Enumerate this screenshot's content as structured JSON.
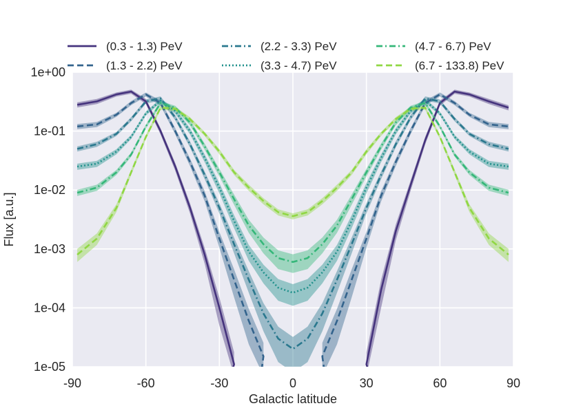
{
  "chart_data": {
    "type": "line",
    "title": "",
    "xlabel": "Galactic latitude",
    "ylabel": "Flux [a.u.]",
    "xlim": [
      -90,
      90
    ],
    "ylim": [
      1e-05,
      1
    ],
    "yscale": "log",
    "grid": true,
    "legend_position": "top",
    "x_ticks": [
      -90,
      -60,
      -30,
      0,
      30,
      60,
      90
    ],
    "x_tick_labels": [
      "-90",
      "-60",
      "-30",
      "0",
      "30",
      "60",
      "90"
    ],
    "y_ticks": [
      1e-05,
      0.0001,
      0.001,
      0.01,
      0.1,
      1
    ],
    "y_tick_labels": [
      "1e-05",
      "1e-04",
      "1e-03",
      "1e-02",
      "1e-01",
      "1e+00"
    ],
    "x": [
      -88,
      -80,
      -72,
      -66,
      -60,
      -54,
      -48,
      -42,
      -36,
      -30,
      -24,
      -18,
      -12,
      -6,
      0,
      6,
      12,
      18,
      24,
      30,
      36,
      42,
      48,
      54,
      60,
      66,
      72,
      80,
      88
    ],
    "series": [
      {
        "name": "(0.3 - 1.3) PeV",
        "color": "#45337d",
        "dash": "solid",
        "values": [
          0.28,
          0.32,
          0.42,
          0.47,
          0.32,
          0.1,
          0.025,
          0.005,
          0.0008,
          0.0001,
          1.1e-05,
          null,
          null,
          null,
          null,
          null,
          null,
          null,
          null,
          1.1e-05,
          0.0002,
          0.002,
          0.012,
          0.07,
          0.3,
          0.47,
          0.42,
          0.32,
          0.25
        ],
        "band": [
          0.1,
          0.1,
          0.08,
          0.08,
          0.1,
          0.12,
          0.15,
          0.2,
          0.3,
          0.5,
          0.6,
          null,
          null,
          null,
          null,
          null,
          null,
          null,
          null,
          0.6,
          0.5,
          0.3,
          0.2,
          0.15,
          0.1,
          0.08,
          0.08,
          0.1,
          0.1
        ]
      },
      {
        "name": "(1.3 - 2.2) PeV",
        "color": "#33638d",
        "dash": "dash",
        "values": [
          0.12,
          0.13,
          0.19,
          0.3,
          0.42,
          0.3,
          0.1,
          0.03,
          0.008,
          0.0015,
          0.0003,
          6e-05,
          1.5e-05,
          null,
          null,
          null,
          1.5e-05,
          6e-05,
          0.0003,
          0.0015,
          0.008,
          0.03,
          0.1,
          0.3,
          0.42,
          0.3,
          0.19,
          0.13,
          0.12
        ],
        "band": [
          0.1,
          0.1,
          0.08,
          0.08,
          0.08,
          0.1,
          0.12,
          0.15,
          0.2,
          0.3,
          0.5,
          0.6,
          0.7,
          null,
          null,
          null,
          0.7,
          0.6,
          0.5,
          0.3,
          0.2,
          0.15,
          0.12,
          0.1,
          0.08,
          0.08,
          0.08,
          0.1,
          0.1
        ]
      },
      {
        "name": "(2.2 - 3.3) PeV",
        "color": "#2a788e",
        "dash": "dashdot",
        "values": [
          0.05,
          0.06,
          0.09,
          0.16,
          0.32,
          0.36,
          0.17,
          0.06,
          0.018,
          0.005,
          0.0012,
          0.0003,
          8e-05,
          3e-05,
          2e-05,
          3e-05,
          8e-05,
          0.0003,
          0.0012,
          0.005,
          0.018,
          0.06,
          0.17,
          0.36,
          0.32,
          0.16,
          0.09,
          0.06,
          0.05
        ],
        "band": [
          0.1,
          0.1,
          0.08,
          0.08,
          0.08,
          0.08,
          0.1,
          0.12,
          0.15,
          0.2,
          0.3,
          0.4,
          0.5,
          0.6,
          0.6,
          0.6,
          0.5,
          0.4,
          0.3,
          0.2,
          0.15,
          0.12,
          0.1,
          0.08,
          0.08,
          0.08,
          0.08,
          0.1,
          0.1
        ]
      },
      {
        "name": "(3.3 - 4.7) PeV",
        "color": "#21918c",
        "dash": "dot",
        "values": [
          0.025,
          0.028,
          0.045,
          0.08,
          0.2,
          0.33,
          0.22,
          0.1,
          0.035,
          0.011,
          0.003,
          0.0009,
          0.0004,
          0.00022,
          0.00018,
          0.00022,
          0.0004,
          0.0009,
          0.003,
          0.011,
          0.035,
          0.1,
          0.22,
          0.33,
          0.2,
          0.08,
          0.045,
          0.028,
          0.025
        ],
        "band": [
          0.12,
          0.12,
          0.1,
          0.08,
          0.08,
          0.08,
          0.1,
          0.12,
          0.15,
          0.2,
          0.25,
          0.3,
          0.35,
          0.4,
          0.4,
          0.4,
          0.35,
          0.3,
          0.25,
          0.2,
          0.15,
          0.12,
          0.1,
          0.08,
          0.08,
          0.08,
          0.1,
          0.12,
          0.12
        ]
      },
      {
        "name": "(4.7 - 6.7) PeV",
        "color": "#35b779",
        "dash": "dashdot",
        "values": [
          0.009,
          0.011,
          0.02,
          0.04,
          0.12,
          0.3,
          0.25,
          0.14,
          0.055,
          0.02,
          0.007,
          0.0025,
          0.0012,
          0.0007,
          0.0006,
          0.0007,
          0.0012,
          0.0025,
          0.007,
          0.02,
          0.055,
          0.14,
          0.25,
          0.3,
          0.12,
          0.04,
          0.02,
          0.011,
          0.009
        ],
        "band": [
          0.12,
          0.12,
          0.1,
          0.08,
          0.08,
          0.08,
          0.08,
          0.1,
          0.12,
          0.15,
          0.2,
          0.25,
          0.3,
          0.35,
          0.35,
          0.35,
          0.3,
          0.25,
          0.2,
          0.15,
          0.12,
          0.1,
          0.08,
          0.08,
          0.08,
          0.08,
          0.1,
          0.12,
          0.12
        ]
      },
      {
        "name": "(6.7 - 133.8) PeV",
        "color": "#90d743",
        "dash": "dash",
        "values": [
          0.0008,
          0.0015,
          0.005,
          0.02,
          0.08,
          0.25,
          0.24,
          0.16,
          0.09,
          0.045,
          0.02,
          0.011,
          0.0065,
          0.0042,
          0.0036,
          0.0042,
          0.0065,
          0.011,
          0.02,
          0.045,
          0.09,
          0.16,
          0.24,
          0.25,
          0.08,
          0.02,
          0.005,
          0.0015,
          0.0008
        ],
        "band": [
          0.25,
          0.22,
          0.15,
          0.1,
          0.08,
          0.08,
          0.08,
          0.08,
          0.08,
          0.1,
          0.1,
          0.12,
          0.12,
          0.12,
          0.12,
          0.12,
          0.12,
          0.12,
          0.1,
          0.1,
          0.08,
          0.08,
          0.08,
          0.08,
          0.08,
          0.1,
          0.15,
          0.22,
          0.25
        ]
      }
    ]
  }
}
